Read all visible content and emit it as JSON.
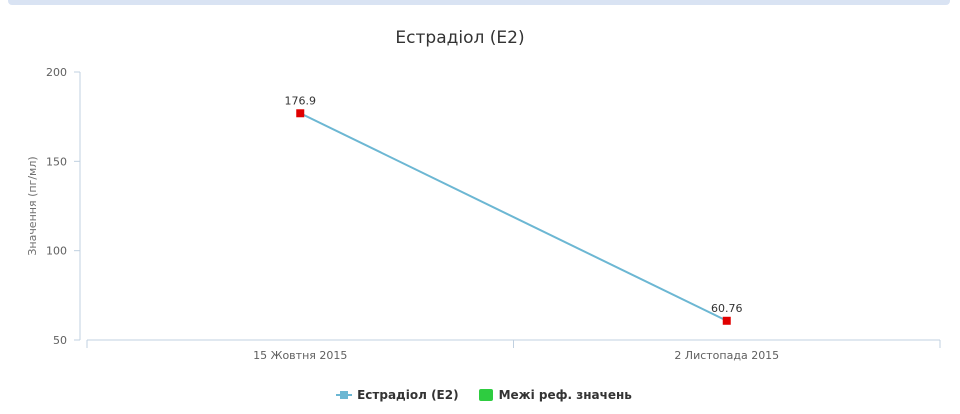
{
  "chart_data": {
    "type": "line",
    "title": "Естрадіол (E2)",
    "ylabel": "Значення (пг/мл)",
    "xlabel": "",
    "categories": [
      "15 Жовтня 2015",
      "2 Листопада 2015"
    ],
    "ylim": [
      50,
      200
    ],
    "yticks": [
      50,
      100,
      150,
      200
    ],
    "series": [
      {
        "name": "Естрадіол (E2)",
        "values": [
          176.9,
          60.76
        ],
        "labels": [
          "176.9",
          "60.76"
        ],
        "line_color": "#6cb7d3",
        "marker_color": "#e00000"
      }
    ],
    "legend": [
      {
        "label": "Естрадіол (E2)",
        "color": "#6cb7d3",
        "symbol": "line"
      },
      {
        "label": "Межі реф. значень",
        "color": "#2ecc40",
        "symbol": "box"
      }
    ],
    "legend_position": "bottom",
    "grid": false
  }
}
